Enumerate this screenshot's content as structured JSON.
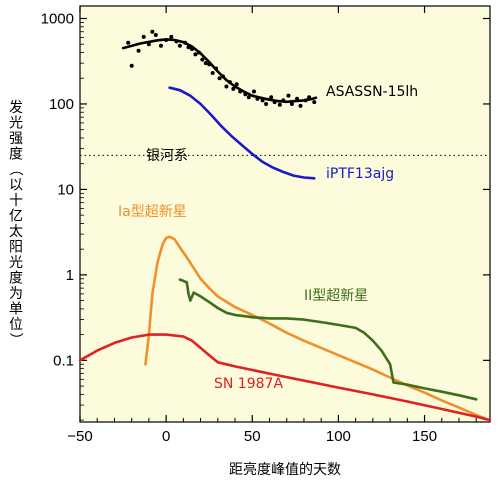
{
  "chart_data": {
    "type": "line",
    "title": "",
    "xlabel": "距亮度峰值的天数",
    "ylabel": "发光强度（以十亿太阳光度为单位）",
    "xlim": [
      -50,
      188
    ],
    "ylim": [
      0.019,
      1400
    ],
    "yscale": "log",
    "x_ticks": [
      -50,
      0,
      50,
      100,
      150
    ],
    "x_tick_labels": [
      "−50",
      "0",
      "50",
      "100",
      "150"
    ],
    "y_ticks": [
      0.1,
      1,
      10,
      100,
      1000
    ],
    "y_tick_labels": [
      "0.1",
      "1",
      "10",
      "100",
      "1000"
    ],
    "grid": false,
    "background": "#fcfbdc",
    "reference_line": {
      "label": "银河系",
      "y": 25
    },
    "series": [
      {
        "name": "ASASSN-15lh",
        "color": "#000000",
        "x": [
          -25,
          -15,
          -5,
          0,
          5,
          10,
          15,
          20,
          25,
          30,
          35,
          40,
          45,
          50,
          55,
          60,
          65,
          70,
          75,
          80,
          85,
          87
        ],
        "y": [
          450,
          510,
          555,
          570,
          560,
          530,
          470,
          390,
          310,
          240,
          190,
          160,
          140,
          125,
          118,
          112,
          108,
          106,
          108,
          110,
          115,
          118
        ]
      },
      {
        "name": "iPTF13ajg",
        "color": "#1a1ac8",
        "x": [
          2,
          8,
          14,
          20,
          26,
          32,
          38,
          44,
          50,
          56,
          62,
          68,
          74,
          80,
          86
        ],
        "y": [
          155,
          145,
          125,
          100,
          75,
          55,
          42,
          33,
          26,
          21,
          18,
          16,
          14.5,
          13.8,
          13.5
        ]
      },
      {
        "name": "Ia型超新星",
        "color": "#f0902a",
        "x": [
          -12,
          -10,
          -8,
          -5,
          -2,
          0,
          2,
          5,
          8,
          12,
          16,
          20,
          25,
          30,
          40,
          50,
          60,
          70,
          80,
          90,
          100,
          110,
          120,
          130,
          140,
          150,
          160,
          170,
          180,
          185
        ],
        "y": [
          0.09,
          0.2,
          0.6,
          1.4,
          2.3,
          2.7,
          2.8,
          2.6,
          2.1,
          1.6,
          1.2,
          0.9,
          0.7,
          0.56,
          0.42,
          0.34,
          0.27,
          0.21,
          0.17,
          0.14,
          0.115,
          0.095,
          0.078,
          0.063,
          0.051,
          0.042,
          0.034,
          0.028,
          0.023,
          0.021
        ]
      },
      {
        "name": "II型超新星",
        "color": "#3d6e1c",
        "x": [
          8,
          10,
          12,
          13,
          14,
          16,
          20,
          25,
          30,
          35,
          40,
          50,
          60,
          70,
          80,
          90,
          100,
          110,
          115,
          120,
          125,
          130,
          132,
          140,
          150,
          160,
          170,
          175,
          180
        ],
        "y": [
          0.88,
          0.85,
          0.82,
          0.6,
          0.5,
          0.62,
          0.56,
          0.48,
          0.41,
          0.36,
          0.34,
          0.32,
          0.31,
          0.31,
          0.3,
          0.28,
          0.26,
          0.24,
          0.21,
          0.17,
          0.13,
          0.09,
          0.055,
          0.052,
          0.047,
          0.043,
          0.039,
          0.037,
          0.035
        ]
      },
      {
        "name": "SN 1987A",
        "color": "#dd2222",
        "x": [
          -50,
          -40,
          -30,
          -20,
          -10,
          0,
          10,
          15,
          20,
          25,
          30,
          40,
          60,
          80,
          100,
          120,
          140,
          160,
          180,
          188
        ],
        "y": [
          0.1,
          0.13,
          0.16,
          0.185,
          0.2,
          0.2,
          0.19,
          0.17,
          0.14,
          0.115,
          0.095,
          0.085,
          0.07,
          0.058,
          0.048,
          0.04,
          0.033,
          0.027,
          0.022,
          0.02
        ]
      }
    ],
    "asassn_points": {
      "x": [
        -22,
        -20,
        -16,
        -13,
        -10,
        -8,
        -6,
        -3,
        0,
        3,
        6,
        8,
        11,
        13,
        15,
        17,
        19,
        21,
        23,
        25,
        27,
        29,
        31,
        33,
        35,
        37,
        39,
        41,
        43,
        46,
        48,
        51,
        53,
        56,
        58,
        61,
        63,
        66,
        68,
        71,
        73,
        76,
        78,
        81,
        83,
        86
      ],
      "y": [
        520,
        280,
        420,
        610,
        500,
        700,
        640,
        480,
        560,
        610,
        540,
        480,
        520,
        460,
        440,
        380,
        400,
        330,
        300,
        290,
        230,
        260,
        200,
        210,
        160,
        180,
        150,
        170,
        140,
        130,
        120,
        140,
        115,
        110,
        100,
        120,
        105,
        98,
        110,
        125,
        100,
        115,
        95,
        110,
        120,
        105
      ]
    }
  },
  "labels": {
    "series_asassn": "ASASSN-15lh",
    "series_iptf": "iPTF13ajg",
    "series_ia": "Ia型超新星",
    "series_ii": "II型超新星",
    "series_sn1987a": "SN 1987A",
    "milky_way": "银河系"
  }
}
